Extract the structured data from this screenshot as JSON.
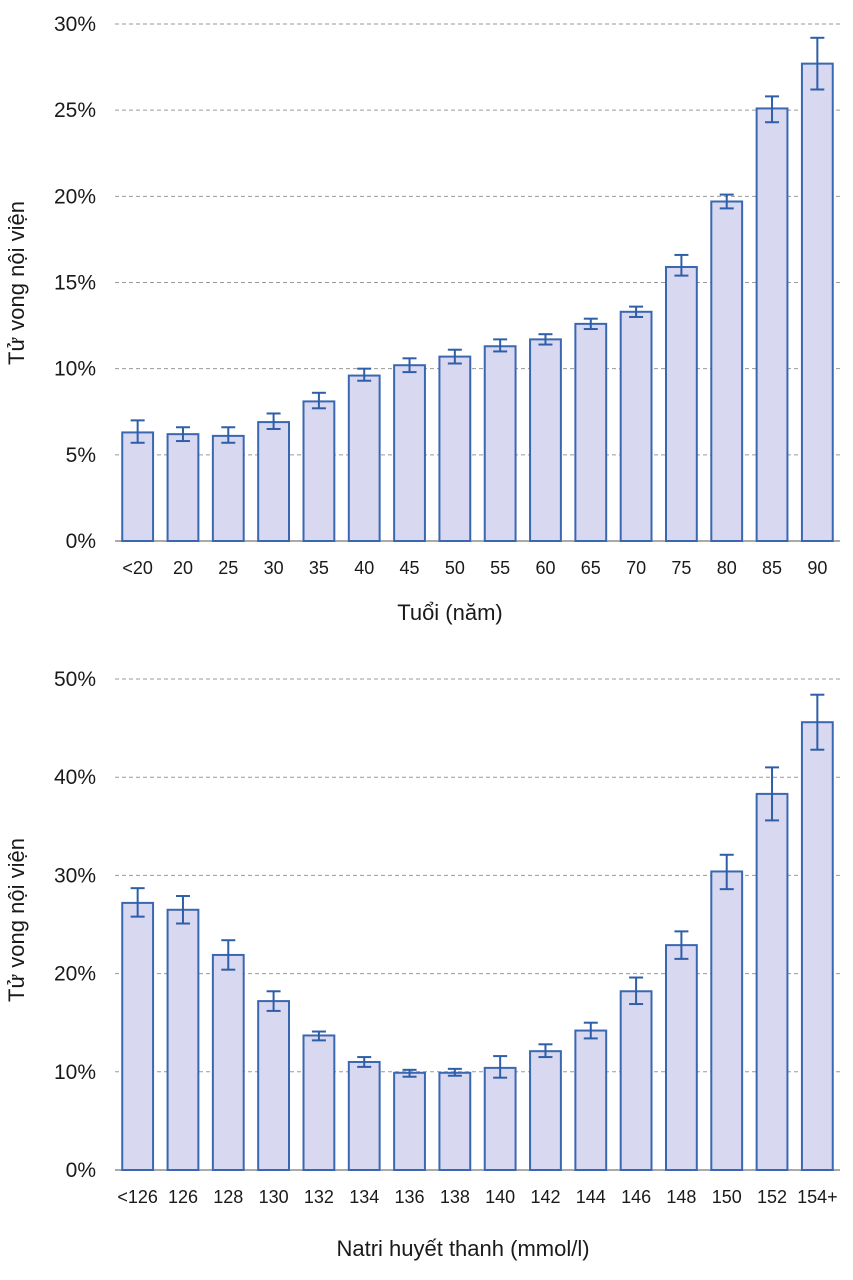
{
  "chart_data": [
    {
      "type": "bar",
      "title": "",
      "xlabel": "Tuổi (năm)",
      "ylabel": "Tử vong nội viện",
      "ylim": [
        0,
        30
      ],
      "y_ticks": [
        "0%",
        "5%",
        "10%",
        "15%",
        "20%",
        "25%",
        "30%"
      ],
      "grid": "horizontal dashed",
      "error_bars": true,
      "categories": [
        "<20",
        "20",
        "25",
        "30",
        "35",
        "40",
        "45",
        "50",
        "55",
        "60",
        "65",
        "70",
        "75",
        "80",
        "85",
        "90"
      ],
      "values": [
        6.3,
        6.2,
        6.1,
        6.9,
        8.1,
        9.6,
        10.2,
        10.7,
        11.3,
        11.7,
        12.6,
        13.3,
        15.9,
        19.7,
        25.1,
        27.7
      ],
      "error_low": [
        5.7,
        5.8,
        5.7,
        6.5,
        7.7,
        9.3,
        9.8,
        10.3,
        11.0,
        11.4,
        12.3,
        13.0,
        15.4,
        19.3,
        24.3,
        26.2
      ],
      "error_high": [
        7.0,
        6.6,
        6.6,
        7.4,
        8.6,
        10.0,
        10.6,
        11.1,
        11.7,
        12.0,
        12.9,
        13.6,
        16.6,
        20.1,
        25.8,
        29.2
      ]
    },
    {
      "type": "bar",
      "title": "",
      "xlabel": "Natri huyết thanh (mmol/l)",
      "ylabel": "Tử vong nội viện",
      "ylim": [
        0,
        50
      ],
      "y_ticks": [
        "0%",
        "10%",
        "20%",
        "30%",
        "40%",
        "50%"
      ],
      "grid": "horizontal dashed",
      "error_bars": true,
      "categories": [
        "<126",
        "126",
        "128",
        "130",
        "132",
        "134",
        "136",
        "138",
        "140",
        "142",
        "144",
        "146",
        "148",
        "150",
        "152",
        "154+"
      ],
      "values": [
        27.2,
        26.5,
        21.9,
        17.2,
        13.7,
        11.0,
        9.9,
        9.9,
        10.4,
        12.1,
        14.2,
        18.2,
        22.9,
        30.4,
        38.3,
        45.6
      ],
      "error_low": [
        25.8,
        25.1,
        20.4,
        16.2,
        13.2,
        10.5,
        9.5,
        9.6,
        9.4,
        11.5,
        13.4,
        16.9,
        21.5,
        28.6,
        35.6,
        42.8
      ],
      "error_high": [
        28.7,
        27.9,
        23.4,
        18.2,
        14.1,
        11.5,
        10.2,
        10.3,
        11.6,
        12.8,
        15.0,
        19.6,
        24.3,
        32.1,
        41.0,
        48.4
      ]
    }
  ]
}
